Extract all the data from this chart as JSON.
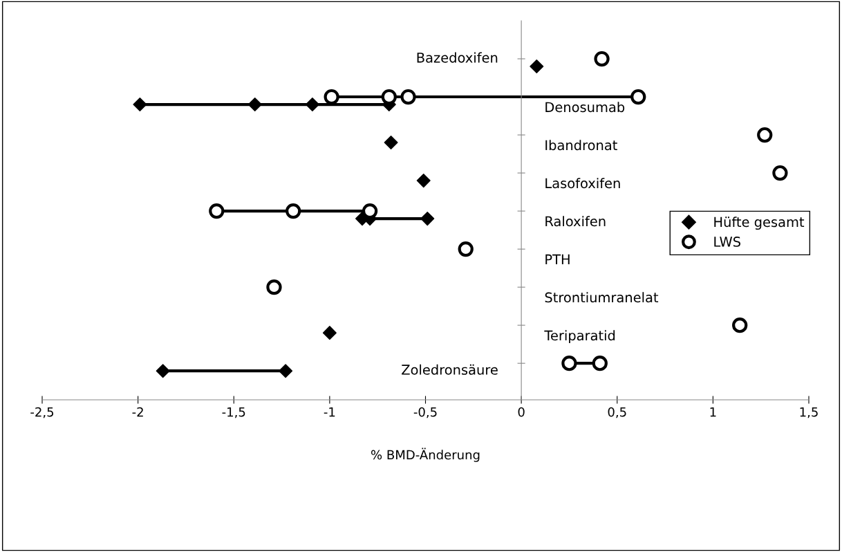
{
  "chart_data": {
    "type": "scatter",
    "orientation": "horizontal",
    "xlabel": "% BMD-Änderung",
    "xlim": [
      -2.5,
      1.5
    ],
    "xticks": [
      {
        "value": -2.5,
        "label": "-2,5"
      },
      -2,
      {
        "value": -1.5,
        "label": "-1,5"
      },
      -1,
      {
        "value": -0.5,
        "label": "-0,5"
      },
      0,
      {
        "value": 0.5,
        "label": "0,5"
      },
      1,
      {
        "value": 1.5,
        "label": "1,5"
      }
    ],
    "categories": [
      "Bazedoxifen",
      "Denosumab",
      "Ibandronat",
      "Lasofoxifen",
      "Raloxifen",
      "PTH",
      "Strontiumranelat",
      "Teriparatid",
      "Zoledronsäure"
    ],
    "legend": "right",
    "grid": false,
    "line_style": "solid",
    "series": [
      {
        "name": "Hüfte gesamt",
        "color": "#000000",
        "marker": "diamond",
        "values": [
          0.08,
          -1.99,
          -0.68,
          -0.51,
          -0.83,
          null,
          null,
          -1.0,
          -1.87
        ]
      },
      {
        "color": "#000000",
        "marker": "diamond",
        "values": [
          null,
          -1.39,
          null,
          null,
          -0.79,
          null,
          null,
          null,
          -1.23
        ]
      },
      {
        "color": "#000000",
        "marker": "diamond",
        "values": [
          null,
          -1.09,
          null,
          null,
          -0.49,
          null,
          null,
          null,
          null
        ]
      },
      {
        "color": "#000000",
        "marker": "diamond",
        "values": [
          null,
          -0.69,
          null,
          null,
          null,
          null,
          null,
          null,
          null
        ]
      },
      {
        "name": "LWS",
        "color": "#000000",
        "marker": "circle",
        "values": [
          0.42,
          -0.99,
          1.27,
          1.35,
          -1.59,
          -0.29,
          -1.29,
          1.14,
          0.25
        ]
      },
      {
        "color": "#000000",
        "marker": "circle",
        "values": [
          null,
          -0.69,
          null,
          null,
          -1.19,
          null,
          null,
          null,
          0.41
        ]
      },
      {
        "color": "#000000",
        "marker": "circle",
        "values": [
          null,
          -0.59,
          null,
          null,
          -0.79,
          null,
          null,
          null,
          null
        ]
      },
      {
        "color": "#000000",
        "marker": "circle",
        "values": [
          null,
          0.61,
          null,
          null,
          null,
          null,
          null,
          null,
          null
        ]
      }
    ]
  }
}
